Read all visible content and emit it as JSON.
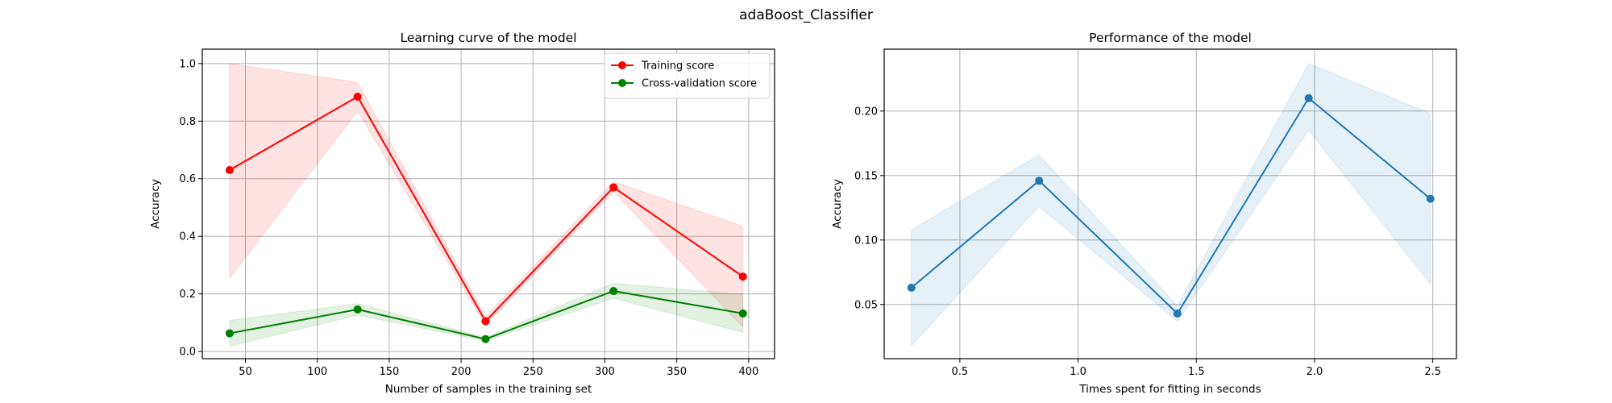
{
  "figure": {
    "suptitle": "adaBoost_Classifier"
  },
  "chart_data": [
    {
      "type": "line",
      "title": "Learning curve of the model",
      "xlabel": "Number of samples in the training set",
      "ylabel": "Accuracy",
      "xlim": [
        20,
        418
      ],
      "ylim": [
        -0.025,
        1.05
      ],
      "xticks": [
        50,
        100,
        150,
        200,
        250,
        300,
        350,
        400
      ],
      "yticks": [
        0.0,
        0.2,
        0.4,
        0.6,
        0.8,
        1.0
      ],
      "grid": true,
      "legend_position": "top-right",
      "x": [
        39,
        128,
        217,
        306,
        396
      ],
      "series": [
        {
          "name": "Training score",
          "color": "#ff0000",
          "band_color": "#ff0000",
          "values": [
            0.63,
            0.885,
            0.105,
            0.57,
            0.26
          ],
          "lower": [
            0.255,
            0.835,
            0.09,
            0.555,
            0.085
          ],
          "upper": [
            1.0,
            0.935,
            0.12,
            0.59,
            0.435
          ]
        },
        {
          "name": "Cross-validation score",
          "color": "#008000",
          "band_color": "#008000",
          "values": [
            0.063,
            0.146,
            0.043,
            0.21,
            0.132
          ],
          "lower": [
            0.018,
            0.126,
            0.037,
            0.185,
            0.066
          ],
          "upper": [
            0.108,
            0.166,
            0.049,
            0.237,
            0.198
          ]
        }
      ]
    },
    {
      "type": "line",
      "title": "Performance of the model",
      "xlabel": "Times spent for fitting in seconds",
      "ylabel": "Accuracy",
      "xlim": [
        0.18,
        2.6
      ],
      "ylim": [
        0.008,
        0.248
      ],
      "xticks": [
        0.5,
        1.0,
        1.5,
        2.0,
        2.5
      ],
      "yticks": [
        0.05,
        0.1,
        0.15,
        0.2
      ],
      "grid": true,
      "x": [
        0.295,
        0.835,
        1.42,
        1.975,
        2.49
      ],
      "series": [
        {
          "color": "#1f77b4",
          "band_color": "#1f77b4",
          "values": [
            0.063,
            0.146,
            0.043,
            0.21,
            0.132
          ],
          "lower": [
            0.018,
            0.126,
            0.037,
            0.185,
            0.066
          ],
          "upper": [
            0.108,
            0.166,
            0.049,
            0.237,
            0.198
          ]
        }
      ]
    }
  ]
}
